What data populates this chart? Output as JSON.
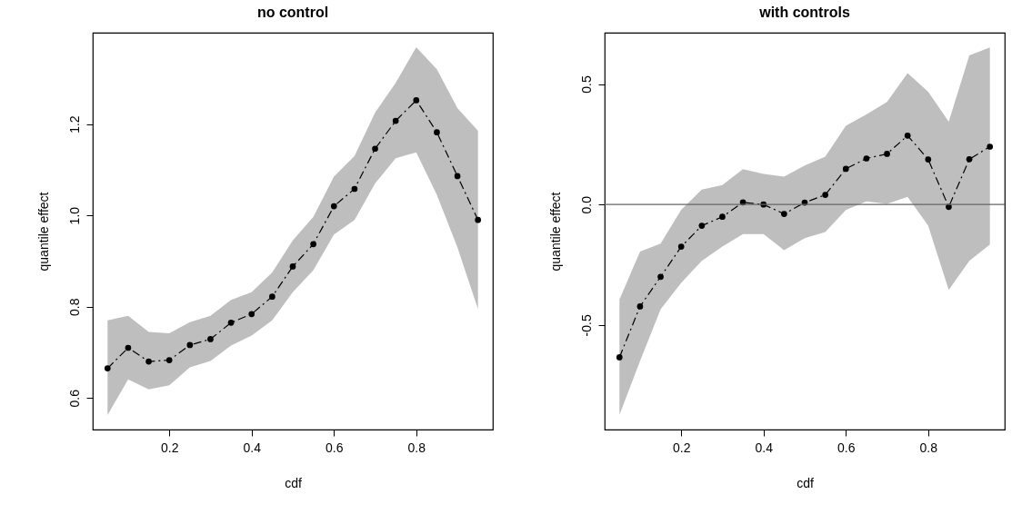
{
  "chart_data": [
    {
      "type": "line",
      "title": "no control",
      "xlabel": "cdf",
      "ylabel": "quantile effect",
      "x": [
        0.05,
        0.1,
        0.15,
        0.2,
        0.25,
        0.3,
        0.35,
        0.4,
        0.45,
        0.5,
        0.55,
        0.6,
        0.65,
        0.7,
        0.75,
        0.8,
        0.85,
        0.9,
        0.95
      ],
      "series": [
        {
          "color": "#000000",
          "values": [
            0.665,
            0.71,
            0.68,
            0.683,
            0.716,
            0.729,
            0.765,
            0.784,
            0.822,
            0.888,
            0.937,
            1.02,
            1.058,
            1.146,
            1.207,
            1.252,
            1.182,
            1.086,
            0.99
          ],
          "lower": [
            0.563,
            0.641,
            0.619,
            0.628,
            0.667,
            0.681,
            0.715,
            0.737,
            0.77,
            0.832,
            0.88,
            0.958,
            0.99,
            1.07,
            1.125,
            1.138,
            1.045,
            0.93,
            0.795
          ],
          "upper": [
            0.77,
            0.78,
            0.745,
            0.742,
            0.766,
            0.78,
            0.815,
            0.832,
            0.875,
            0.945,
            0.997,
            1.085,
            1.13,
            1.225,
            1.29,
            1.368,
            1.32,
            1.235,
            1.185
          ]
        }
      ],
      "xlim": [
        0.014,
        0.986
      ],
      "xticks": [
        0.2,
        0.4,
        0.6,
        0.8
      ],
      "ylim": [
        0.531,
        1.4
      ],
      "yticks": [
        0.6,
        0.8,
        {
          "value": 1.0,
          "label": "1.0"
        },
        1.2
      ],
      "grid": false,
      "marker": "circle",
      "line_style": "dashed"
    },
    {
      "type": "line",
      "title": "with controls",
      "xlabel": "cdf",
      "ylabel": "quantile effect",
      "x": [
        0.05,
        0.1,
        0.15,
        0.2,
        0.25,
        0.3,
        0.35,
        0.4,
        0.45,
        0.5,
        0.55,
        0.6,
        0.65,
        0.7,
        0.75,
        0.8,
        0.85,
        0.9,
        0.95
      ],
      "series": [
        {
          "color": "#000000",
          "values": [
            -0.634,
            -0.423,
            -0.3,
            -0.175,
            -0.088,
            -0.051,
            0.009,
            0.0,
            -0.039,
            0.008,
            0.04,
            0.148,
            0.191,
            0.21,
            0.286,
            0.187,
            -0.01,
            0.188,
            0.24
          ],
          "lower": [
            -0.873,
            -0.649,
            -0.435,
            -0.325,
            -0.234,
            -0.175,
            -0.123,
            -0.123,
            -0.19,
            -0.14,
            -0.114,
            -0.023,
            0.013,
            0.003,
            0.032,
            -0.088,
            -0.355,
            -0.234,
            -0.166
          ],
          "upper": [
            -0.394,
            -0.195,
            -0.162,
            -0.022,
            0.062,
            0.081,
            0.147,
            0.127,
            0.116,
            0.162,
            0.199,
            0.327,
            0.374,
            0.426,
            0.545,
            0.468,
            0.344,
            0.619,
            0.652
          ]
        }
      ],
      "xlim": [
        0.014,
        0.986
      ],
      "xticks": [
        0.2,
        0.4,
        0.6,
        0.8
      ],
      "ylim": [
        -0.934,
        0.713
      ],
      "yticks": [
        {
          "value": -0.5,
          "label": "-0.5"
        },
        {
          "value": 0.0,
          "label": "0.0"
        },
        0.5
      ],
      "ref_lines": [
        {
          "axis": "y",
          "value": 0,
          "color": "#666666"
        }
      ],
      "grid": false,
      "marker": "circle",
      "line_style": "dashed"
    }
  ]
}
